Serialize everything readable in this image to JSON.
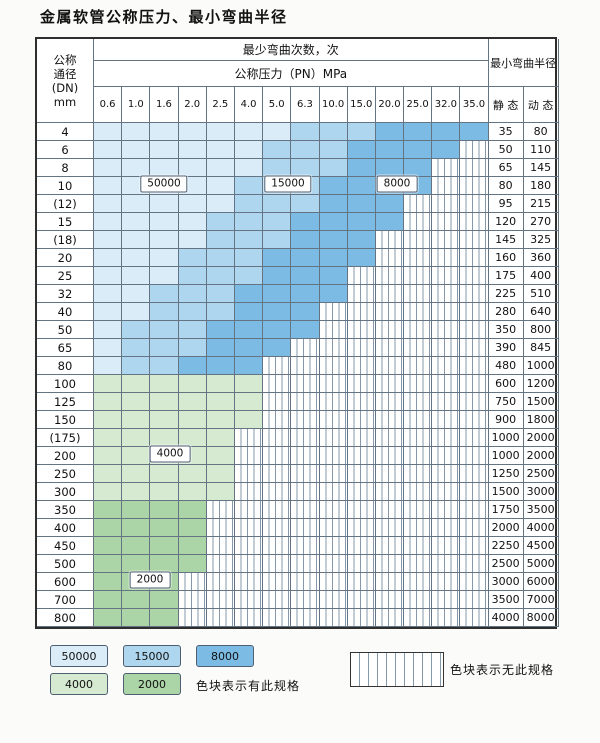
{
  "page": {
    "title": "金属软管公称压力、最小弯曲半径"
  },
  "table": {
    "header": {
      "dn_label_lines": [
        "公称",
        "通径",
        "(DN)",
        "mm"
      ],
      "bend_times_label": "最少弯曲次数，次",
      "pressure_label": "公称压力（PN）MPa",
      "pressure_columns": [
        "0.6",
        "1.0",
        "1.6",
        "2.0",
        "2.5",
        "4.0",
        "5.0",
        "6.3",
        "10.0",
        "15.0",
        "20.0",
        "25.0",
        "32.0",
        "35.0"
      ],
      "radius_label": "最小弯曲半径",
      "static_label": "静 态",
      "dynamic_label": "动 态"
    },
    "cell_codes": {
      "A": "50000",
      "B": "15000",
      "C": "8000",
      "D": "4000",
      "E": "2000",
      "X": "none"
    },
    "rows": [
      {
        "dn": "4",
        "cells": "AAAAAAABBBCCCC",
        "static": "35",
        "dynamic": "80"
      },
      {
        "dn": "6",
        "cells": "AAAAAABBBCCCCX",
        "static": "50",
        "dynamic": "110"
      },
      {
        "dn": "8",
        "cells": "AAAAAABBBCCCXX",
        "static": "65",
        "dynamic": "145"
      },
      {
        "dn": "10",
        "cells": "AAAAABBBCCCCXX",
        "static": "80",
        "dynamic": "180"
      },
      {
        "dn": "(12)",
        "cells": "AAAAABBBCCCXXX",
        "static": "95",
        "dynamic": "215"
      },
      {
        "dn": "15",
        "cells": "AAAABBBCCCCXXX",
        "static": "120",
        "dynamic": "270"
      },
      {
        "dn": "(18)",
        "cells": "AAAABBBCCCXXXX",
        "static": "145",
        "dynamic": "325"
      },
      {
        "dn": "20",
        "cells": "AAABBBCCCCXXXX",
        "static": "160",
        "dynamic": "360"
      },
      {
        "dn": "25",
        "cells": "AAABBBCCCXXXXX",
        "static": "175",
        "dynamic": "400"
      },
      {
        "dn": "32",
        "cells": "AABBBCCCCXXXXX",
        "static": "225",
        "dynamic": "510"
      },
      {
        "dn": "40",
        "cells": "AABBBCCCXXXXXX",
        "static": "280",
        "dynamic": "640"
      },
      {
        "dn": "50",
        "cells": "ABBBCCCCXXXXXX",
        "static": "350",
        "dynamic": "800"
      },
      {
        "dn": "65",
        "cells": "ABBBCCCXXXXXXX",
        "static": "390",
        "dynamic": "845"
      },
      {
        "dn": "80",
        "cells": "ABBCCCXXXXXXXX",
        "static": "480",
        "dynamic": "1000"
      },
      {
        "dn": "100",
        "cells": "DDDDDDXXXXXXXX",
        "static": "600",
        "dynamic": "1200"
      },
      {
        "dn": "125",
        "cells": "DDDDDDXXXXXXXX",
        "static": "750",
        "dynamic": "1500"
      },
      {
        "dn": "150",
        "cells": "DDDDDDXXXXXXXX",
        "static": "900",
        "dynamic": "1800"
      },
      {
        "dn": "(175)",
        "cells": "DDDDDXXXXXXXXX",
        "static": "1000",
        "dynamic": "2000"
      },
      {
        "dn": "200",
        "cells": "DDDDDXXXXXXXXX",
        "static": "1000",
        "dynamic": "2000"
      },
      {
        "dn": "250",
        "cells": "DDDDDXXXXXXXXX",
        "static": "1250",
        "dynamic": "2500"
      },
      {
        "dn": "300",
        "cells": "DDDDDXXXXXXXXX",
        "static": "1500",
        "dynamic": "3000"
      },
      {
        "dn": "350",
        "cells": "EEEEXXXXXXXXXX",
        "static": "1750",
        "dynamic": "3500"
      },
      {
        "dn": "400",
        "cells": "EEEEXXXXXXXXXX",
        "static": "2000",
        "dynamic": "4000"
      },
      {
        "dn": "450",
        "cells": "EEEEXXXXXXXXXX",
        "static": "2250",
        "dynamic": "4500"
      },
      {
        "dn": "500",
        "cells": "EEEEXXXXXXXXXX",
        "static": "2500",
        "dynamic": "5000"
      },
      {
        "dn": "600",
        "cells": "EEEXXXXXXXXXXX",
        "static": "3000",
        "dynamic": "6000"
      },
      {
        "dn": "700",
        "cells": "EEEXXXXXXXXXXX",
        "static": "3500",
        "dynamic": "7000"
      },
      {
        "dn": "800",
        "cells": "EEEXXXXXXXXXXX",
        "static": "4000",
        "dynamic": "8000"
      }
    ]
  },
  "overlays": [
    {
      "label": "50000"
    },
    {
      "label": "15000"
    },
    {
      "label": "8000"
    },
    {
      "label": "4000"
    },
    {
      "label": "2000"
    }
  ],
  "legend": {
    "swatches": [
      {
        "label": "50000"
      },
      {
        "label": "15000"
      },
      {
        "label": "8000"
      },
      {
        "label": "4000"
      },
      {
        "label": "2000"
      }
    ],
    "available_note": "色块表示有此规格",
    "unavailable_note": "色块表示无此规格"
  },
  "colors": {
    "regions": {
      "50000": "#d9ecf8",
      "15000": "#aed6ee",
      "8000": "#7cbce4",
      "4000": "#d6e9d1",
      "2000": "#abd5a6"
    }
  }
}
